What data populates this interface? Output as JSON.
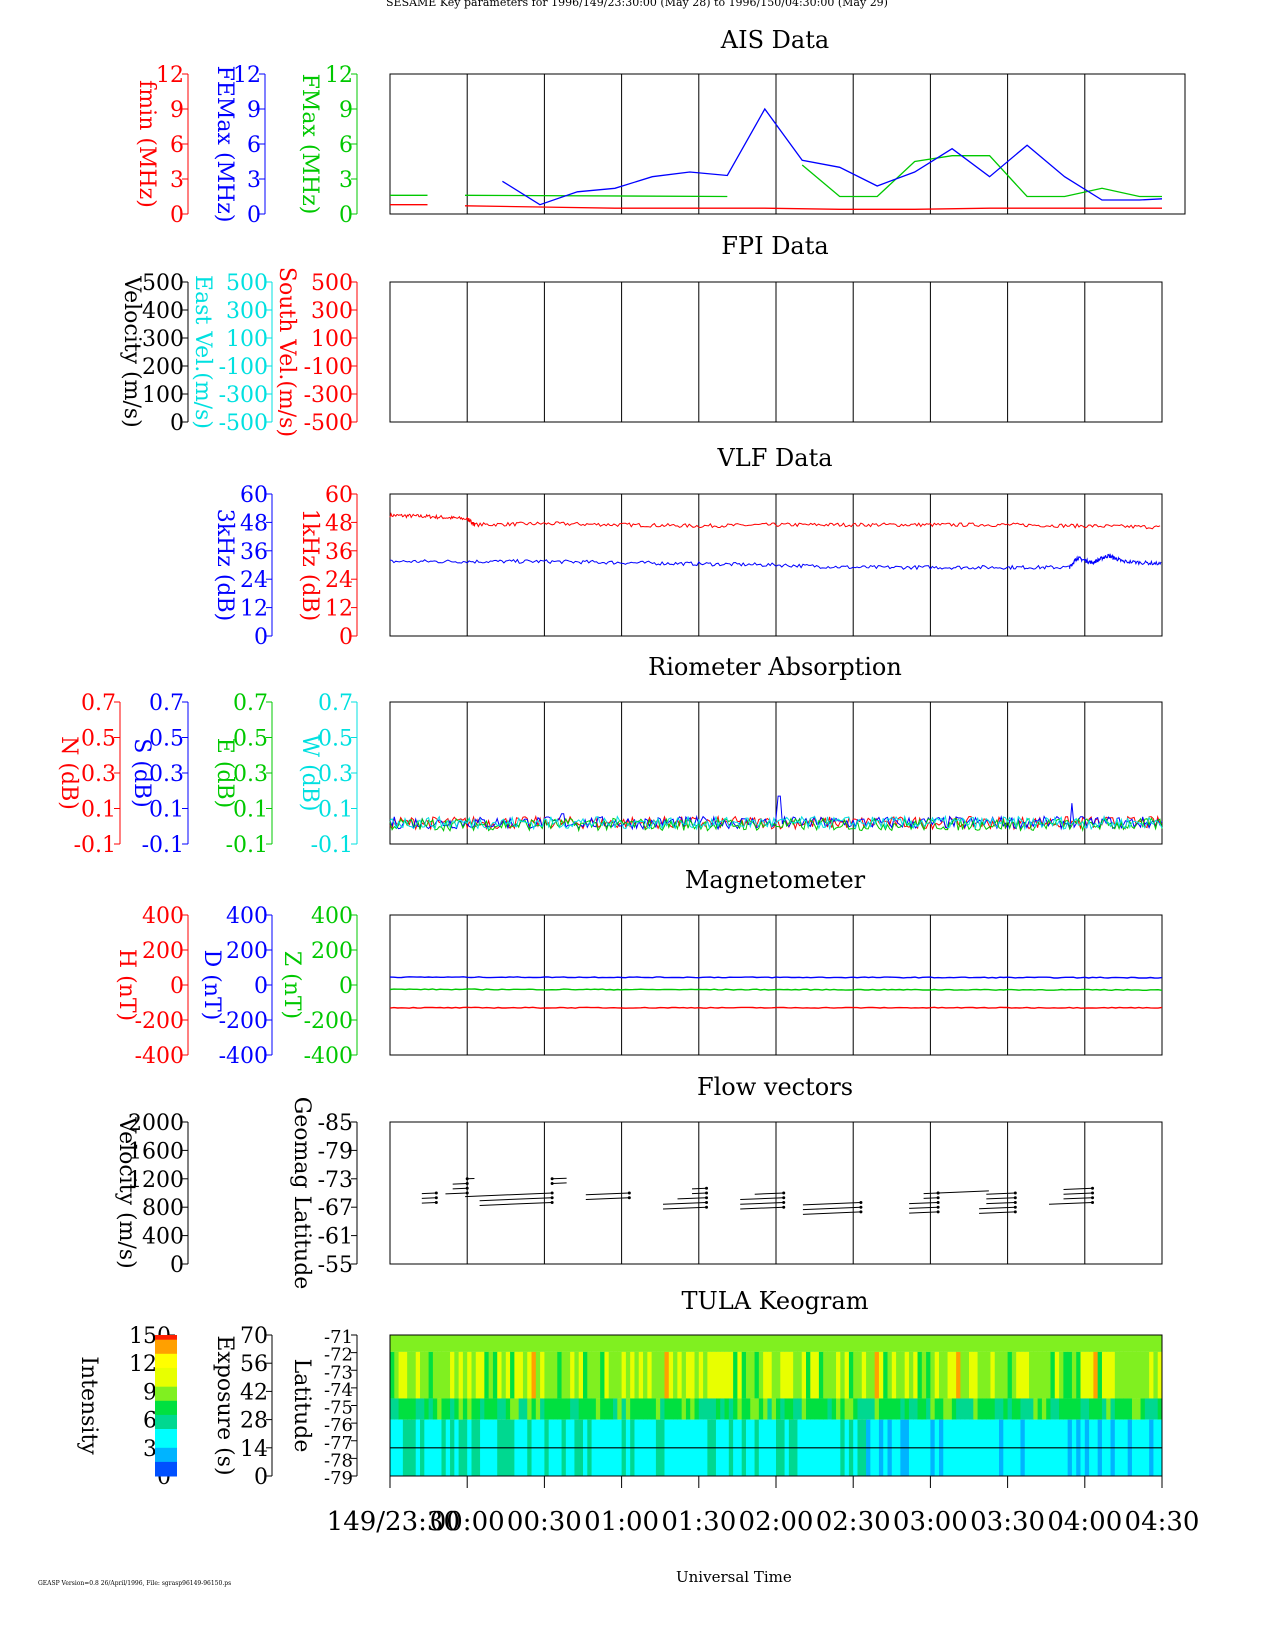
{
  "header": {
    "title": "SESAME Key parameters for 1996/149/23:30:00 (May 28) to 1996/150/04:30:00 (May 29)"
  },
  "footer": {
    "version_note": "GEASP Version=0.8 26/April/1996, File: sgrasp96149-96150.ps",
    "xaxis_label": "Universal Time"
  },
  "colors": {
    "red": "#ff0000",
    "blue": "#0000ff",
    "green": "#00c800",
    "cyan": "#00e0e0",
    "black": "#000000"
  },
  "time_axis": {
    "tick_labels": [
      "149/23:30",
      "00:00",
      "00:30",
      "01:00",
      "01:30",
      "02:00",
      "02:30",
      "03:00",
      "03:30",
      "04:00",
      "04:30"
    ]
  },
  "chart_data": [
    {
      "id": "ais",
      "type": "line",
      "title": "AIS Data",
      "axes": [
        {
          "label": "fmin (MHz)",
          "color": "red",
          "ticks": [
            "12",
            "9",
            "6",
            "3",
            "0"
          ]
        },
        {
          "label": "FEMax (MHz)",
          "color": "blue",
          "ticks": [
            "12",
            "9",
            "6",
            "3",
            "0"
          ]
        },
        {
          "label": "FMax (MHz)",
          "color": "green",
          "ticks": [
            "12",
            "9",
            "6",
            "3",
            "0"
          ]
        }
      ],
      "ylim": [
        0,
        12
      ],
      "xlim_hours": [
        0,
        5
      ],
      "series": [
        {
          "color": "green",
          "segments": [
            [
              [
                0,
                1.6
              ],
              [
                0.25,
                1.6
              ]
            ],
            [
              [
                0.5,
                1.6
              ],
              [
                2.25,
                1.5
              ]
            ],
            [
              [
                2.75,
                4.2
              ],
              [
                3.0,
                1.5
              ],
              [
                3.25,
                1.5
              ],
              [
                3.5,
                4.5
              ],
              [
                3.75,
                5.0
              ],
              [
                4.0,
                5.0
              ],
              [
                4.25,
                1.5
              ],
              [
                4.5,
                1.5
              ],
              [
                4.75,
                2.2
              ],
              [
                5.0,
                1.5
              ],
              [
                5.15,
                1.5
              ]
            ]
          ]
        },
        {
          "color": "blue",
          "segments": [
            [
              [
                0.75,
                2.8
              ],
              [
                1.0,
                0.8
              ],
              [
                1.25,
                1.9
              ],
              [
                1.5,
                2.2
              ],
              [
                1.75,
                3.2
              ],
              [
                2.0,
                3.6
              ],
              [
                2.25,
                3.3
              ],
              [
                2.5,
                9.0
              ],
              [
                2.75,
                4.6
              ],
              [
                3.0,
                4.0
              ],
              [
                3.25,
                2.4
              ],
              [
                3.5,
                3.6
              ],
              [
                3.75,
                5.6
              ],
              [
                4.0,
                3.2
              ],
              [
                4.25,
                5.9
              ],
              [
                4.5,
                3.2
              ],
              [
                4.75,
                1.2
              ],
              [
                5.0,
                1.2
              ],
              [
                5.15,
                1.3
              ]
            ]
          ]
        },
        {
          "color": "red",
          "segments": [
            [
              [
                0,
                0.8
              ],
              [
                0.25,
                0.8
              ]
            ],
            [
              [
                0.5,
                0.7
              ],
              [
                1.0,
                0.6
              ],
              [
                1.5,
                0.5
              ],
              [
                2.0,
                0.5
              ],
              [
                2.5,
                0.5
              ],
              [
                3.0,
                0.4
              ],
              [
                3.5,
                0.4
              ],
              [
                4.0,
                0.5
              ],
              [
                4.5,
                0.5
              ],
              [
                5.0,
                0.5
              ],
              [
                5.15,
                0.5
              ]
            ]
          ]
        }
      ]
    },
    {
      "id": "fpi",
      "type": "line",
      "title": "FPI Data",
      "axes": [
        {
          "label": "Velocity (m/s)",
          "color": "black",
          "ticks": [
            "500",
            "400",
            "300",
            "200",
            "100",
            "0"
          ]
        },
        {
          "label": "East Vel.(m/s)",
          "color": "cyan",
          "ticks": [
            "500",
            "300",
            "100",
            "-100",
            "-300",
            "-500"
          ]
        },
        {
          "label": "South Vel.(m/s)",
          "color": "red",
          "ticks": [
            "500",
            "300",
            "100",
            "-100",
            "-300",
            "-500"
          ]
        }
      ],
      "series": []
    },
    {
      "id": "vlf",
      "type": "line",
      "title": "VLF Data",
      "axes": [
        {
          "label": "3kHz (dB)",
          "color": "blue",
          "ticks": [
            "60",
            "48",
            "36",
            "24",
            "12",
            "0"
          ]
        },
        {
          "label": "1kHz (dB)",
          "color": "red",
          "ticks": [
            "60",
            "48",
            "36",
            "24",
            "12",
            "0"
          ]
        }
      ],
      "ylim": [
        0,
        60
      ],
      "series": [
        {
          "color": "red",
          "name": "1kHz",
          "points": [
            [
              0,
              51
            ],
            [
              0.25,
              50.5
            ],
            [
              0.5,
              49.5
            ],
            [
              0.55,
              47
            ],
            [
              1.0,
              47.5
            ],
            [
              1.5,
              47
            ],
            [
              2.0,
              46.5
            ],
            [
              2.5,
              47
            ],
            [
              3.0,
              47
            ],
            [
              3.5,
              47
            ],
            [
              4.0,
              47
            ],
            [
              4.5,
              46.5
            ],
            [
              5.0,
              46
            ]
          ]
        },
        {
          "color": "blue",
          "name": "3kHz",
          "points": [
            [
              0,
              31.5
            ],
            [
              0.5,
              31.5
            ],
            [
              1.0,
              31.5
            ],
            [
              1.5,
              31
            ],
            [
              2.0,
              30.5
            ],
            [
              2.5,
              30
            ],
            [
              3.0,
              29
            ],
            [
              3.5,
              29
            ],
            [
              4.0,
              29
            ],
            [
              4.4,
              29
            ],
            [
              4.45,
              33
            ],
            [
              4.55,
              31
            ],
            [
              4.65,
              34
            ],
            [
              4.75,
              31.5
            ],
            [
              5.0,
              30.5
            ]
          ]
        }
      ]
    },
    {
      "id": "riometer",
      "type": "line",
      "title": "Riometer Absorption",
      "axes": [
        {
          "label": "N (dB)",
          "color": "red",
          "ticks": [
            "0.7",
            "0.5",
            "0.3",
            "0.1",
            "-0.1"
          ]
        },
        {
          "label": "S (dB)",
          "color": "blue",
          "ticks": [
            "0.7",
            "0.5",
            "0.3",
            "0.1",
            "-0.1"
          ]
        },
        {
          "label": "E (dB)",
          "color": "green",
          "ticks": [
            "0.7",
            "0.5",
            "0.3",
            "0.1",
            "-0.1"
          ]
        },
        {
          "label": "W (dB)",
          "color": "cyan",
          "ticks": [
            "0.7",
            "0.5",
            "0.3",
            "0.1",
            "-0.1"
          ]
        }
      ],
      "ylim": [
        -0.1,
        0.7
      ],
      "baseline": 0.02,
      "spikes": [
        {
          "t": 2.52,
          "value": 0.17
        },
        {
          "t": 4.42,
          "value": 0.13
        },
        {
          "t": 1.12,
          "value": 0.07
        }
      ],
      "series": [
        {
          "color": "red",
          "name": "N"
        },
        {
          "color": "blue",
          "name": "S"
        },
        {
          "color": "green",
          "name": "E"
        },
        {
          "color": "cyan",
          "name": "W"
        }
      ]
    },
    {
      "id": "magnetometer",
      "type": "line",
      "title": "Magnetometer",
      "axes": [
        {
          "label": "H (nT)",
          "color": "red",
          "ticks": [
            "400",
            "200",
            "0",
            "-200",
            "-400"
          ]
        },
        {
          "label": "D (nT)",
          "color": "blue",
          "ticks": [
            "400",
            "200",
            "0",
            "-200",
            "-400"
          ]
        },
        {
          "label": "Z (nT)",
          "color": "green",
          "ticks": [
            "400",
            "200",
            "0",
            "-200",
            "-400"
          ]
        }
      ],
      "ylim": [
        -400,
        400
      ],
      "series": [
        {
          "color": "blue",
          "name": "D",
          "points": [
            [
              0,
              45
            ],
            [
              5,
              42
            ]
          ]
        },
        {
          "color": "green",
          "name": "Z",
          "points": [
            [
              0,
              -25
            ],
            [
              5,
              -28
            ]
          ]
        },
        {
          "color": "red",
          "name": "H",
          "points": [
            [
              0,
              -130
            ],
            [
              5,
              -130
            ]
          ]
        }
      ]
    },
    {
      "id": "flow",
      "type": "scatter",
      "title": "Flow vectors",
      "axes": [
        {
          "label": "Velocity (m/s)",
          "color": "black",
          "ticks": [
            "2000",
            "1600",
            "1200",
            "800",
            "400",
            "0"
          ]
        },
        {
          "label": "Geomag Latitude",
          "color": "black",
          "ticks": [
            "-85",
            "-79",
            "-73",
            "-67",
            "-61",
            "-55"
          ]
        }
      ],
      "ylim": [
        -55,
        -85
      ],
      "vectors": [
        {
          "t": 0.3,
          "lat": [
            -68,
            -69,
            -70
          ],
          "dx": [
            -0.1,
            -0.1,
            -0.1
          ]
        },
        {
          "t": 0.5,
          "lat": [
            -70,
            -71,
            -72,
            -73
          ],
          "dx": [
            -0.15,
            -0.1,
            -0.1,
            0.05
          ]
        },
        {
          "t": 1.05,
          "lat": [
            -68,
            -69,
            -70
          ],
          "dx": [
            -0.5,
            -0.5,
            -0.6
          ]
        },
        {
          "t": 1.05,
          "lat": [
            -72,
            -73
          ],
          "dx": [
            0.1,
            0.1
          ]
        },
        {
          "t": 1.55,
          "lat": [
            -69,
            -70
          ],
          "dx": [
            -0.3,
            -0.3
          ]
        },
        {
          "t": 2.05,
          "lat": [
            -67,
            -68,
            -69,
            -70,
            -71
          ],
          "dx": [
            -0.3,
            -0.3,
            -0.2,
            -0.1,
            -0.1
          ]
        },
        {
          "t": 2.55,
          "lat": [
            -67,
            -68,
            -69,
            -70
          ],
          "dx": [
            -0.3,
            -0.3,
            -0.3,
            -0.2
          ]
        },
        {
          "t": 3.05,
          "lat": [
            -66,
            -67,
            -68
          ],
          "dx": [
            -0.4,
            -0.4,
            -0.4
          ]
        },
        {
          "t": 3.55,
          "lat": [
            -66,
            -67,
            -68,
            -69,
            -70
          ],
          "dx": [
            -0.2,
            -0.2,
            -0.2,
            -0.1,
            -0.1
          ]
        },
        {
          "t": 3.55,
          "lat": [
            -70
          ],
          "dx": [
            0.35
          ]
        },
        {
          "t": 4.05,
          "lat": [
            -66,
            -67,
            -68,
            -69,
            -70
          ],
          "dx": [
            -0.25,
            -0.25,
            -0.2,
            -0.2,
            -0.2
          ]
        },
        {
          "t": 4.55,
          "lat": [
            -68,
            -69,
            -70,
            -71
          ],
          "dx": [
            -0.3,
            -0.2,
            -0.2,
            -0.2
          ]
        }
      ]
    },
    {
      "id": "keogram",
      "type": "heatmap",
      "title": "TULA Keogram",
      "axes": [
        {
          "label": "Intensity",
          "color": "black",
          "ticks": [
            "150",
            "120",
            "90",
            "60",
            "30",
            "0"
          ]
        },
        {
          "label": "Exposure (s)",
          "color": "black",
          "ticks": [
            "70",
            "56",
            "42",
            "28",
            "14",
            "0"
          ]
        },
        {
          "label": "Latitude",
          "color": "black",
          "ticks": [
            "-71",
            "-72",
            "-73",
            "-74",
            "-75",
            "-76",
            "-77",
            "-78",
            "-79"
          ]
        }
      ],
      "intensity_range": [
        0,
        150
      ],
      "bands": [
        {
          "from_frac": 0.0,
          "to_frac": 0.12,
          "intensity": 100
        },
        {
          "from_frac": 0.12,
          "to_frac": 0.45,
          "intensity": 95
        },
        {
          "from_frac": 0.45,
          "to_frac": 0.6,
          "intensity": 75
        },
        {
          "from_frac": 0.6,
          "to_frac": 1.0,
          "intensity": 50
        }
      ],
      "exposure_line_value": 14
    }
  ]
}
